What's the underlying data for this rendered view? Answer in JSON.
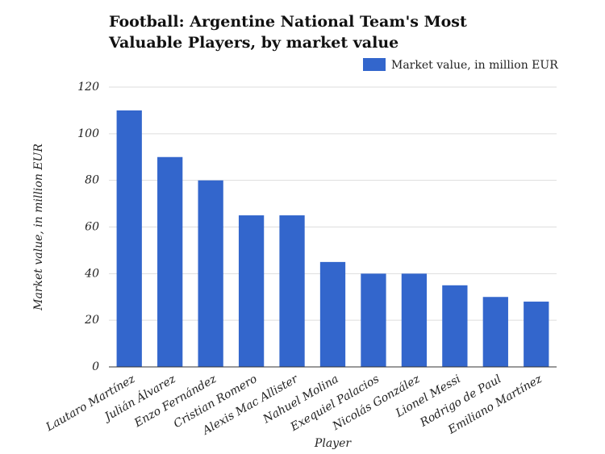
{
  "chart_data": {
    "type": "bar",
    "title": "Football: Argentine National Team's Most Valuable Players, by market value",
    "x_label": "Player",
    "y_label": "Market value, in million EUR",
    "categories": [
      "Lautaro Martínez",
      "Julián Álvarez",
      "Enzo Fernández",
      "Cristian Romero",
      "Alexis Mac Allister",
      "Nahuel Molina",
      "Exequiel Palacios",
      "Nicolás González",
      "Lionel Messi",
      "Rodrigo de Paul",
      "Emiliano Martínez"
    ],
    "series": [
      {
        "name": "Market value, in million EUR",
        "color": "#3366cc",
        "values": [
          110,
          90,
          80,
          65,
          65,
          45,
          40,
          40,
          35,
          30,
          28
        ]
      }
    ],
    "ylim": [
      0,
      120
    ],
    "yticks": [
      0,
      20,
      40,
      60,
      80,
      100,
      120
    ],
    "grid": true,
    "legend": "top-right"
  }
}
